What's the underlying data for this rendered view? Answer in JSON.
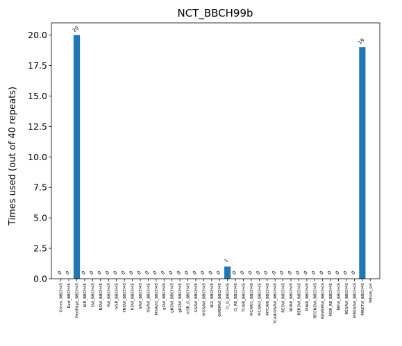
{
  "chart_data": {
    "type": "bar",
    "title": "NCT_BBCH99b",
    "ylabel": "Times used (out of 40 repeats)",
    "xlabel": "",
    "ylim": [
      0,
      21
    ],
    "yticks": [
      0.0,
      2.5,
      5.0,
      7.5,
      10.0,
      12.5,
      15.0,
      17.5,
      20.0
    ],
    "ytick_labels": [
      "0.0",
      "2.5",
      "5.0",
      "7.5",
      "10.0",
      "12.5",
      "15.0",
      "17.5",
      "20.0"
    ],
    "bar_color": "#1f77b4",
    "grid": false,
    "categories": [
      "Green_BBCH45",
      "Red_BBCH45",
      "RedEdge_BBCH45",
      "NIR_BBCH45",
      "DVI_BBCH45",
      "NDVI_BBCH45",
      "RVI_BBCH45",
      "mSR_BBCH45",
      "TNDVI_BBCH45",
      "RDVI_BBCH45",
      "SAVI_BBCH45",
      "OSAVI_BBCH45",
      "MSAVI2_BBCH45",
      "gDVI_BBCH45",
      "gNDVI_BBCH45",
      "gRDVI_BBCH45",
      "mSR_G_BBCH45",
      "GSAVI_BBCH45",
      "MGSAVI_BBCH45",
      "NGI_BBCH45",
      "GWDRVI_BBCH45",
      "CI_G_BBCH45",
      "CI_RE_BBCH45",
      "TCARI_BBCH45",
      "MCARI1_BBCH45",
      "MCARI2_BBCH45",
      "MTCARI_BBCH45",
      "TCARIOSAVI_BBCH45",
      "REDVI_BBCH45",
      "NDRE_BBCH45",
      "RERDVI_BBCH45",
      "MNRI_BBCH45",
      "REGNDVI_BBCH45",
      "REWDRVI_BBCH45",
      "MSR_RE_BBCH45",
      "MEVI_BBCH45",
      "RESAVI_BBCH45",
      "MRESAVI_BBCH45",
      "MRETVI_BBCH45",
      "Whole_set"
    ],
    "values": [
      0,
      0,
      20,
      0,
      0,
      0,
      0,
      0,
      0,
      0,
      0,
      0,
      0,
      0,
      0,
      0,
      0,
      0,
      0,
      0,
      0,
      1,
      0,
      0,
      0,
      0,
      0,
      0,
      0,
      0,
      0,
      0,
      0,
      0,
      0,
      0,
      0,
      0,
      19,
      null
    ],
    "data_labels": [
      "0",
      "0",
      "20",
      "0",
      "0",
      "0",
      "0",
      "0",
      "0",
      "0",
      "0",
      "0",
      "0",
      "0",
      "0",
      "0",
      "0",
      "0",
      "0",
      "0",
      "0",
      "1",
      "0",
      "0",
      "0",
      "0",
      "0",
      "0",
      "0",
      "0",
      "0",
      "0",
      "0",
      "0",
      "0",
      "0",
      "0",
      "0",
      "19",
      ""
    ]
  }
}
